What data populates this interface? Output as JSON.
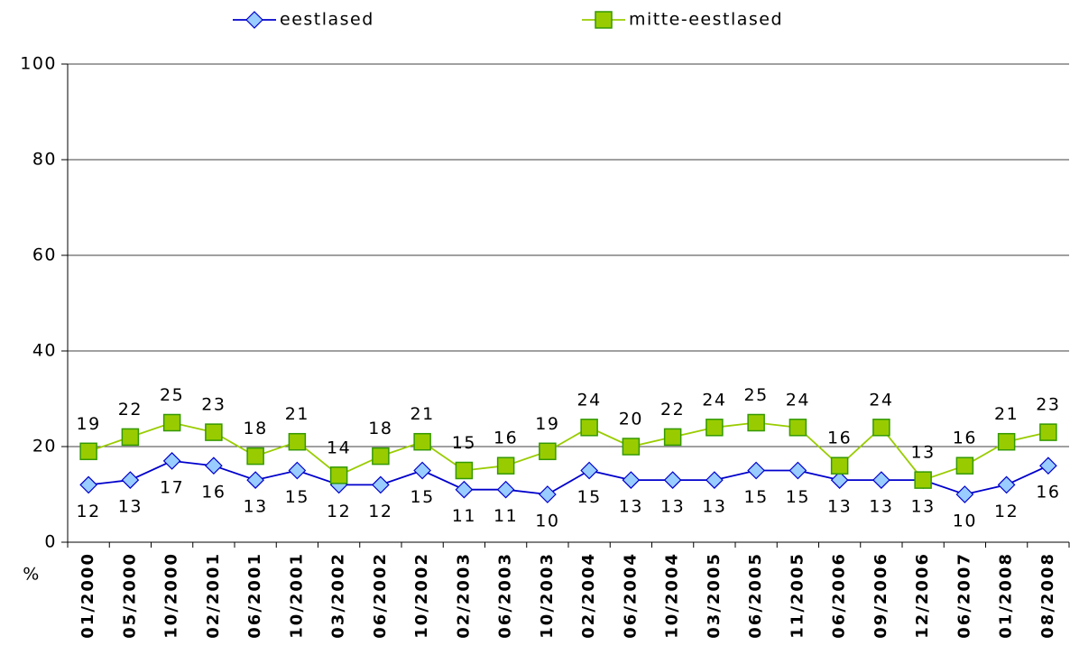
{
  "chart_data": {
    "type": "line",
    "categories": [
      "01/2000",
      "05/2000",
      "10/2000",
      "02/2001",
      "06/2001",
      "10/2001",
      "03/2002",
      "06/2002",
      "10/2002",
      "02/2003",
      "06/2003",
      "10/2003",
      "02/2004",
      "06/2004",
      "10/2004",
      "03/2005",
      "06/2005",
      "11/2005",
      "06/2006",
      "09/2006",
      "12/2006",
      "06/2007",
      "01/2008",
      "08/2008"
    ],
    "series": [
      {
        "name": "eestlased",
        "color": "#0000cc",
        "marker": "diamond",
        "label_position": "below",
        "values": [
          12,
          13,
          17,
          16,
          13,
          15,
          12,
          12,
          15,
          11,
          11,
          10,
          15,
          13,
          13,
          13,
          15,
          15,
          13,
          13,
          13,
          10,
          12,
          16
        ]
      },
      {
        "name": "mitte-eestlased",
        "color": "#99cc00",
        "marker": "square",
        "label_position": "above",
        "values": [
          19,
          22,
          25,
          23,
          18,
          21,
          14,
          18,
          21,
          15,
          16,
          19,
          24,
          20,
          22,
          24,
          25,
          24,
          16,
          24,
          13,
          16,
          21,
          23
        ]
      }
    ],
    "y_label": "%",
    "ylim": [
      0,
      100
    ],
    "yticks": [
      0,
      20,
      40,
      60,
      80,
      100
    ],
    "grid": true,
    "legend": "top"
  }
}
